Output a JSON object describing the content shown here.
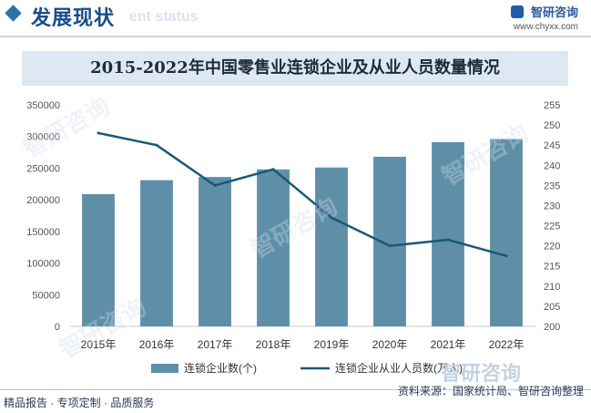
{
  "header": {
    "title": "发展现状",
    "ghost_text": "ent status",
    "brand_name": "智研咨询",
    "brand_url": "www.chyxx.com"
  },
  "footer": {
    "left": "精品报告 · 专项定制 · 品质服务",
    "source": "资料来源：国家统计局、智研咨询整理",
    "brand": "智研咨询"
  },
  "watermarks": [
    "智研咨询",
    "智研咨询",
    "智研咨询",
    "智研咨询"
  ],
  "colors": {
    "bar": "#5f8fa8",
    "line": "#1b5878",
    "title_bar": "#dde8f2",
    "header_title": "#1a4c8a"
  },
  "chart_data": {
    "type": "bar",
    "title": "2015-2022年中国零售业连锁企业及从业人员数量情况",
    "categories": [
      "2015年",
      "2016年",
      "2017年",
      "2018年",
      "2019年",
      "2020年",
      "2021年",
      "2022年"
    ],
    "series": [
      {
        "name": "连锁企业数(个)",
        "type": "bar",
        "axis": "left",
        "values": [
          209000,
          231000,
          236000,
          248000,
          251000,
          268000,
          291000,
          296000
        ]
      },
      {
        "name": "连锁企业从业人员数(万人)",
        "type": "line",
        "axis": "right",
        "values": [
          248,
          245,
          235,
          239,
          227,
          220,
          221.5,
          217.5
        ]
      }
    ],
    "y_left": {
      "min": 0,
      "max": 350000,
      "ticks": [
        "0",
        "50000",
        "100000",
        "150000",
        "200000",
        "250000",
        "300000",
        "350000"
      ]
    },
    "y_right": {
      "min": 200,
      "max": 255,
      "ticks": [
        "200",
        "205",
        "210",
        "215",
        "220",
        "225",
        "230",
        "235",
        "240",
        "245",
        "250",
        "255"
      ]
    },
    "legend_position": "bottom",
    "grid": false
  }
}
